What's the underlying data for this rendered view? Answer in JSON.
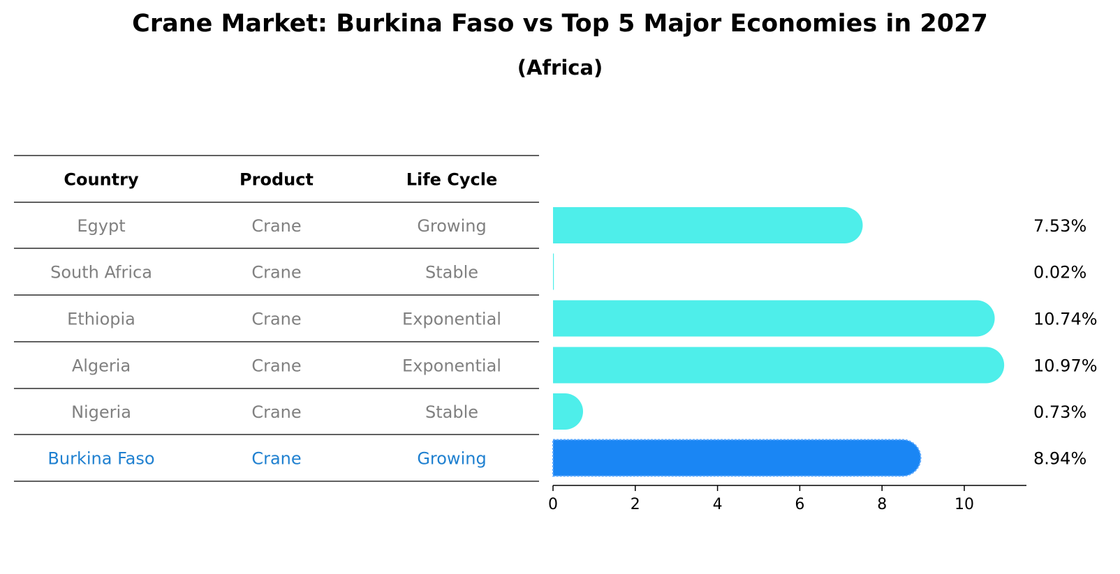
{
  "title": "Crane Market: Burkina Faso vs Top 5 Major Economies in 2027",
  "subtitle": "(Africa)",
  "table": {
    "headers": [
      "Country",
      "Product",
      "Life Cycle"
    ],
    "rows": [
      {
        "country": "Egypt",
        "product": "Crane",
        "life_cycle": "Growing"
      },
      {
        "country": "South Africa",
        "product": "Crane",
        "life_cycle": "Stable"
      },
      {
        "country": "Ethiopia",
        "product": "Crane",
        "life_cycle": "Exponential"
      },
      {
        "country": "Algeria",
        "product": "Crane",
        "life_cycle": "Exponential"
      },
      {
        "country": "Nigeria",
        "product": "Crane",
        "life_cycle": "Stable"
      },
      {
        "country": "Burkina Faso",
        "product": "Crane",
        "life_cycle": "Growing"
      }
    ],
    "highlight_index": 5,
    "text_color": "#808080",
    "highlight_text_color": "#1f80d0"
  },
  "chart_data": {
    "type": "bar",
    "orientation": "horizontal",
    "categories": [
      "Egypt",
      "South Africa",
      "Ethiopia",
      "Algeria",
      "Nigeria",
      "Burkina Faso"
    ],
    "values": [
      7.53,
      0.02,
      10.74,
      10.97,
      0.73,
      8.94
    ],
    "value_labels": [
      "7.53%",
      "0.02%",
      "10.74%",
      "10.97%",
      "0.73%",
      "8.94%"
    ],
    "xlim": [
      0,
      11.5
    ],
    "xticks": [
      0,
      2,
      4,
      6,
      8,
      10
    ],
    "bar_color": "#4eeeea",
    "highlight_color": "#1a86f4",
    "highlight_index": 5,
    "grid": false
  }
}
